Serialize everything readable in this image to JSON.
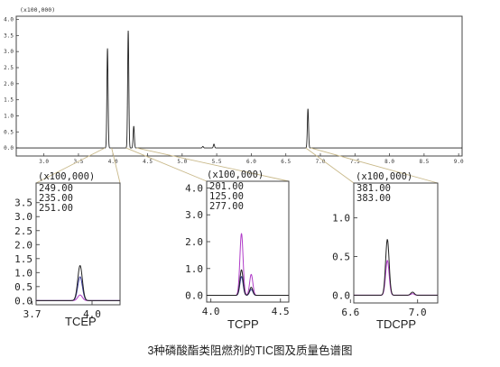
{
  "caption": "3种磷酸酯类阻燃剂的TIC图及质量色谱图",
  "chart_data": [
    {
      "id": "tic",
      "type": "line",
      "scale_label": "(x100,000)",
      "xlim": [
        2.6,
        9.05
      ],
      "ylim": [
        -0.25,
        4.1
      ],
      "x_ticks": [
        {
          "value": 3.0,
          "label": "3.0"
        },
        {
          "value": 3.5,
          "label": "3.5"
        },
        {
          "value": 4.0,
          "label": "4.0"
        },
        {
          "value": 4.5,
          "label": "4.5"
        },
        {
          "value": 5.0,
          "label": "5.0"
        },
        {
          "value": 5.5,
          "label": "5.5"
        },
        {
          "value": 6.0,
          "label": "6.0"
        },
        {
          "value": 6.5,
          "label": "6.5"
        },
        {
          "value": 7.0,
          "label": "7.0"
        },
        {
          "value": 7.5,
          "label": "7.5"
        },
        {
          "value": 8.0,
          "label": "8.0"
        },
        {
          "value": 8.5,
          "label": "8.5"
        },
        {
          "value": 9.0,
          "label": "9.0"
        }
      ],
      "y_ticks": [
        {
          "value": 0.0,
          "label": "0.0"
        },
        {
          "value": 0.5,
          "label": "0.5"
        },
        {
          "value": 1.0,
          "label": "1.0"
        },
        {
          "value": 1.5,
          "label": "1.5"
        },
        {
          "value": 2.0,
          "label": "2.0"
        },
        {
          "value": 2.5,
          "label": "2.5"
        },
        {
          "value": 3.0,
          "label": "3.0"
        },
        {
          "value": 3.5,
          "label": "3.5"
        },
        {
          "value": 4.0,
          "label": "4.0"
        }
      ],
      "peaks": [
        {
          "x": 3.92,
          "height": 3.1
        },
        {
          "x": 4.22,
          "height": 3.65
        },
        {
          "x": 4.3,
          "height": 0.68
        },
        {
          "x": 5.3,
          "height": 0.05
        },
        {
          "x": 5.46,
          "height": 0.12
        },
        {
          "x": 6.82,
          "height": 1.22
        }
      ],
      "grid": false
    },
    {
      "id": "tcep",
      "type": "line",
      "compound": "TCEP",
      "scale_label": "(x100,000)",
      "xlim": [
        3.72,
        4.14
      ],
      "ylim": [
        -0.15,
        4.2
      ],
      "x_ticks": [
        {
          "value": 3.7,
          "label": "3.7"
        },
        {
          "value": 4.0,
          "label": "4.0"
        }
      ],
      "y_ticks": [
        {
          "value": 0.0,
          "label": "0.0"
        },
        {
          "value": 0.5,
          "label": "0.5"
        },
        {
          "value": 1.0,
          "label": "1.0"
        },
        {
          "value": 1.5,
          "label": "1.5"
        },
        {
          "value": 2.0,
          "label": "2.0"
        },
        {
          "value": 2.5,
          "label": "2.5"
        },
        {
          "value": 3.0,
          "label": "3.0"
        },
        {
          "value": 3.5,
          "label": "3.5"
        }
      ],
      "series": [
        {
          "name": "249.00",
          "color": "#222222",
          "peaks": [
            {
              "x": 3.94,
              "height": 1.25
            }
          ]
        },
        {
          "name": "235.00",
          "color": "#b03cc8",
          "peaks": [
            {
              "x": 3.94,
              "height": 0.2
            }
          ]
        },
        {
          "name": "251.00",
          "color": "#3b3b9a",
          "peaks": [
            {
              "x": 3.94,
              "height": 0.85
            }
          ]
        }
      ],
      "grid": false
    },
    {
      "id": "tcpp",
      "type": "line",
      "compound": "TCPP",
      "scale_label": "(x100,000)",
      "xlim": [
        3.97,
        4.56
      ],
      "ylim": [
        -0.25,
        4.25
      ],
      "x_ticks": [
        {
          "value": 4.0,
          "label": "4.0"
        },
        {
          "value": 4.5,
          "label": "4.5"
        }
      ],
      "y_ticks": [
        {
          "value": 0.0,
          "label": "0.0"
        },
        {
          "value": 1.0,
          "label": "1.0"
        },
        {
          "value": 2.0,
          "label": "2.0"
        },
        {
          "value": 3.0,
          "label": "3.0"
        },
        {
          "value": 4.0,
          "label": "4.0"
        }
      ],
      "series": [
        {
          "name": "201.00",
          "color": "#222222",
          "peaks": [
            {
              "x": 4.22,
              "height": 0.95
            },
            {
              "x": 4.29,
              "height": 0.3
            }
          ]
        },
        {
          "name": "125.00",
          "color": "#b03cc8",
          "peaks": [
            {
              "x": 4.22,
              "height": 2.3
            },
            {
              "x": 4.29,
              "height": 0.78
            }
          ]
        },
        {
          "name": "277.00",
          "color": "#3b3b9a",
          "peaks": [
            {
              "x": 4.22,
              "height": 0.7
            },
            {
              "x": 4.29,
              "height": 0.22
            }
          ]
        }
      ],
      "grid": false
    },
    {
      "id": "tdcpp",
      "type": "line",
      "compound": "TDCPP",
      "scale_label": "(x100,000)",
      "xlim": [
        6.62,
        7.12
      ],
      "ylim": [
        -0.1,
        1.45
      ],
      "x_ticks": [
        {
          "value": 6.6,
          "label": "6.6"
        },
        {
          "value": 7.0,
          "label": "7.0"
        }
      ],
      "y_ticks": [
        {
          "value": 0.0,
          "label": "0.0"
        },
        {
          "value": 0.5,
          "label": "0.5"
        },
        {
          "value": 1.0,
          "label": "1.0"
        }
      ],
      "series": [
        {
          "name": "381.00",
          "color": "#222222",
          "peaks": [
            {
              "x": 6.82,
              "height": 0.72
            },
            {
              "x": 6.97,
              "height": 0.04
            }
          ]
        },
        {
          "name": "383.00",
          "color": "#b03cc8",
          "peaks": [
            {
              "x": 6.82,
              "height": 0.45
            },
            {
              "x": 6.97,
              "height": 0.02
            }
          ]
        }
      ],
      "grid": false
    }
  ]
}
